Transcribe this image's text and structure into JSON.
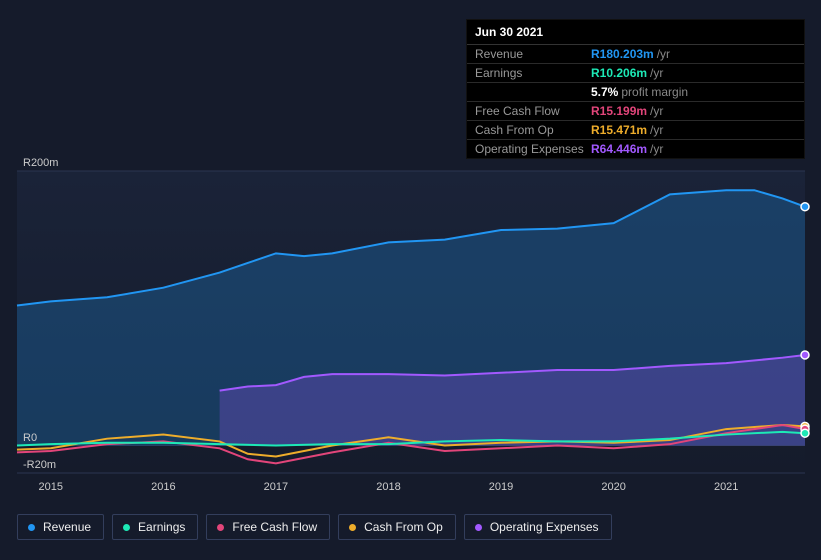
{
  "tooltip": {
    "date": "Jun 30 2021",
    "rows": [
      {
        "label": "Revenue",
        "value": "R180.203m",
        "value_color": "#2196f3",
        "unit": "/yr"
      },
      {
        "label": "Earnings",
        "value": "R10.206m",
        "value_color": "#1de9b6",
        "unit": "/yr",
        "sub_value": "5.7%",
        "sub_label": "profit margin"
      },
      {
        "label": "Free Cash Flow",
        "value": "R15.199m",
        "value_color": "#e2457a",
        "unit": "/yr"
      },
      {
        "label": "Cash From Op",
        "value": "R15.471m",
        "value_color": "#eead2b",
        "unit": "/yr"
      },
      {
        "label": "Operating Expenses",
        "value": "R64.446m",
        "value_color": "#a259ff",
        "unit": "/yr"
      }
    ]
  },
  "chart": {
    "type": "area-line-timeseries",
    "background_gradient": [
      "#1a2338",
      "#151b2b"
    ],
    "grid_color": "#2a3450",
    "label_color": "#cccccc",
    "label_fontsize": 11,
    "x_years": [
      2015,
      2016,
      2017,
      2018,
      2019,
      2020,
      2021
    ],
    "x_min": 2014.7,
    "x_max": 2021.7,
    "y_min": -20,
    "y_max": 200,
    "y_ticks": [
      {
        "value": 200,
        "label": "R200m"
      },
      {
        "value": 0,
        "label": "R0"
      },
      {
        "value": -20,
        "label": "-R20m"
      }
    ],
    "series": [
      {
        "name": "Revenue",
        "color": "#2196f3",
        "fill": true,
        "data": [
          [
            2014.7,
            102
          ],
          [
            2015,
            105
          ],
          [
            2015.5,
            108
          ],
          [
            2016,
            115
          ],
          [
            2016.5,
            126
          ],
          [
            2016.75,
            133
          ],
          [
            2017,
            140
          ],
          [
            2017.25,
            138
          ],
          [
            2017.5,
            140
          ],
          [
            2018,
            148
          ],
          [
            2018.5,
            150
          ],
          [
            2019,
            157
          ],
          [
            2019.5,
            158
          ],
          [
            2020,
            162
          ],
          [
            2020.5,
            183
          ],
          [
            2021,
            186
          ],
          [
            2021.25,
            186
          ],
          [
            2021.5,
            180
          ],
          [
            2021.7,
            174
          ]
        ]
      },
      {
        "name": "Operating Expenses",
        "color": "#a259ff",
        "fill": true,
        "start": 2016.5,
        "data": [
          [
            2016.5,
            40
          ],
          [
            2016.75,
            43
          ],
          [
            2017,
            44
          ],
          [
            2017.25,
            50
          ],
          [
            2017.5,
            52
          ],
          [
            2018,
            52
          ],
          [
            2018.5,
            51
          ],
          [
            2019,
            53
          ],
          [
            2019.5,
            55
          ],
          [
            2020,
            55
          ],
          [
            2020.5,
            58
          ],
          [
            2021,
            60
          ],
          [
            2021.5,
            64
          ],
          [
            2021.7,
            66
          ]
        ]
      },
      {
        "name": "Cash From Op",
        "color": "#eead2b",
        "fill": false,
        "data": [
          [
            2014.7,
            -3
          ],
          [
            2015,
            -2
          ],
          [
            2015.5,
            5
          ],
          [
            2016,
            8
          ],
          [
            2016.5,
            3
          ],
          [
            2016.75,
            -6
          ],
          [
            2017,
            -8
          ],
          [
            2017.25,
            -4
          ],
          [
            2017.5,
            0
          ],
          [
            2018,
            6
          ],
          [
            2018.5,
            0
          ],
          [
            2019,
            2
          ],
          [
            2019.5,
            3
          ],
          [
            2020,
            2
          ],
          [
            2020.5,
            4
          ],
          [
            2021,
            12
          ],
          [
            2021.5,
            15
          ],
          [
            2021.7,
            14
          ]
        ]
      },
      {
        "name": "Free Cash Flow",
        "color": "#e2457a",
        "fill": false,
        "data": [
          [
            2014.7,
            -5
          ],
          [
            2015,
            -4
          ],
          [
            2015.5,
            1
          ],
          [
            2016,
            3
          ],
          [
            2016.5,
            -2
          ],
          [
            2016.75,
            -10
          ],
          [
            2017,
            -13
          ],
          [
            2017.25,
            -9
          ],
          [
            2017.5,
            -5
          ],
          [
            2018,
            2
          ],
          [
            2018.5,
            -4
          ],
          [
            2019,
            -2
          ],
          [
            2019.5,
            0
          ],
          [
            2020,
            -2
          ],
          [
            2020.5,
            1
          ],
          [
            2021,
            9
          ],
          [
            2021.5,
            15
          ],
          [
            2021.7,
            12
          ]
        ]
      },
      {
        "name": "Earnings",
        "color": "#1de9b6",
        "fill": false,
        "data": [
          [
            2014.7,
            0
          ],
          [
            2015,
            1
          ],
          [
            2015.5,
            2
          ],
          [
            2016,
            2
          ],
          [
            2016.5,
            1
          ],
          [
            2017,
            0
          ],
          [
            2017.5,
            1
          ],
          [
            2018,
            1
          ],
          [
            2018.5,
            3
          ],
          [
            2019,
            4
          ],
          [
            2019.5,
            3
          ],
          [
            2020,
            3
          ],
          [
            2020.5,
            5
          ],
          [
            2021,
            8
          ],
          [
            2021.5,
            10
          ],
          [
            2021.7,
            9
          ]
        ]
      }
    ],
    "marker_x": 2021.7
  },
  "legend": [
    {
      "label": "Revenue",
      "color": "#2196f3"
    },
    {
      "label": "Earnings",
      "color": "#1de9b6"
    },
    {
      "label": "Free Cash Flow",
      "color": "#e2457a"
    },
    {
      "label": "Cash From Op",
      "color": "#eead2b"
    },
    {
      "label": "Operating Expenses",
      "color": "#a259ff"
    }
  ]
}
